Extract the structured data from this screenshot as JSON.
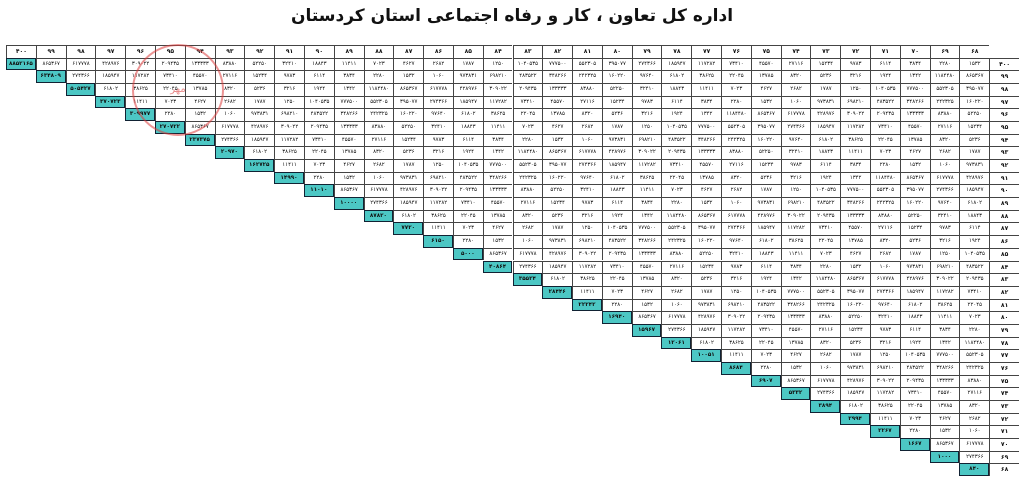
{
  "page": {
    "title": "اداره کل تعاون ، کار و رفاه اجتماعی استان کردستان"
  },
  "table": {
    "columns": [
      "۴۰۰",
      "۹۹",
      "۹۸",
      "۹۷",
      "۹۶",
      "۹۵",
      "۹۴",
      "۹۳",
      "۹۲",
      "۹۱",
      "۹۰",
      "۸۹",
      "۸۸",
      "۸۷",
      "۸۶",
      "۸۵",
      "۸۴",
      "۸۳",
      "۸۲",
      "۸۱",
      "۸۰",
      "۷۹",
      "۷۸",
      "۷۷",
      "۷۶",
      "۷۵",
      "۷۴",
      "۷۳",
      "۷۲",
      "۷۱",
      "۷۰",
      "۶۹",
      "۶۸"
    ],
    "rows": [
      "۴۰۰",
      "۹۹",
      "۹۸",
      "۹۷",
      "۹۶",
      "۹۵",
      "۹۴",
      "۹۳",
      "۹۲",
      "۹۱",
      "۹۰",
      "۸۹",
      "۸۸",
      "۸۷",
      "۸۶",
      "۸۵",
      "۸۴",
      "۸۳",
      "۸۲",
      "۸۱",
      "۸۰",
      "۷۹",
      "۷۸",
      "۷۷",
      "۷۶",
      "۷۵",
      "۷۴",
      "۷۳",
      "۷۲",
      "۷۱",
      "۷۰",
      "۶۹",
      "۶۸"
    ],
    "diagonal": [
      "۸۸۵۲۱۶۵",
      "۶۳۴۸۰۹",
      "۵۰۵۴۲۷",
      "۳۷۰۷۲۳",
      "۳۰۹۹۷۷",
      "۲۷۰۷۲۲",
      "۲۳۷۳۷۵",
      "۲۰۹۷۰",
      "۱۶۲۷۲۵",
      "۱۴۹۹۰",
      "۱۱۰۱۰",
      "۱۰۰۰۰",
      "۸۷۸۲۰",
      "۷۷۲۰",
      "۶۱۵۰",
      "۵۰۰۰",
      "۴۰۸۶۴",
      "۳۵۵۲۴",
      "۲۸۴۴۶",
      "۲۲۲۴۲",
      "۱۶۹۴۰",
      "۱۵۹۶۷",
      "۱۲۰۶۱",
      "۱۰۰۵۱",
      "۸۶۸۴",
      "۶۹۰۷",
      "۵۳۳۲",
      "۳۸۹۴",
      "۲۹۹۴",
      "۲۲۶۷",
      "۱۶۶۷",
      "۱۰۰۰",
      "۸۴۰"
    ],
    "filler_pool": [
      "۱۱۸۴۴۸۰",
      "۱۰۴۰۵۳۵",
      "۹۷۳۸۳۱",
      "۸۶۵۳۶۷",
      "۷۷۷۵۰۰",
      "۶۹۸۲۱۰",
      "۶۱۷۷۷۸",
      "۵۵۲۳۰۵",
      "۴۸۳۵۲۲",
      "۴۲۸۹۷۶",
      "۳۹۵۰۷۷",
      "۳۴۸۲۶۶",
      "۳۰۹۰۲۲",
      "۲۷۴۳۶۶",
      "۲۴۲۳۲۵",
      "۲۰۹۴۳۵",
      "۱۸۵۹۴۷",
      "۱۶۰۲۲۰",
      "۱۳۳۳۳۳",
      "۱۱۷۲۸۲",
      "۹۷۶۴۰",
      "۸۳۸۸۰",
      "۷۳۴۱۰",
      "۶۱۸۰۲",
      "۵۲۲۵۰",
      "۴۵۵۷۰",
      "۳۸۶۲۵",
      "۳۲۴۱۰",
      "۲۷۱۱۶",
      "۲۲۰۴۵",
      "۱۸۸۴۳",
      "۱۵۲۳۴",
      "۱۳۷۸۵",
      "۱۱۴۱۱",
      "۹۷۸۳",
      "۸۳۲۰",
      "۷۰۲۳",
      "۶۱۱۴",
      "۵۲۳۶",
      "۴۶۲۷",
      "۳۸۳۴",
      "۳۲۱۶",
      "۲۶۸۲",
      "۲۲۸۰",
      "۱۹۲۴",
      "۱۷۸۷",
      "۱۵۳۲",
      "۱۳۴۲",
      "۱۲۵۰",
      "۱۰۶۰"
    ],
    "stamp_text": "مهر"
  }
}
